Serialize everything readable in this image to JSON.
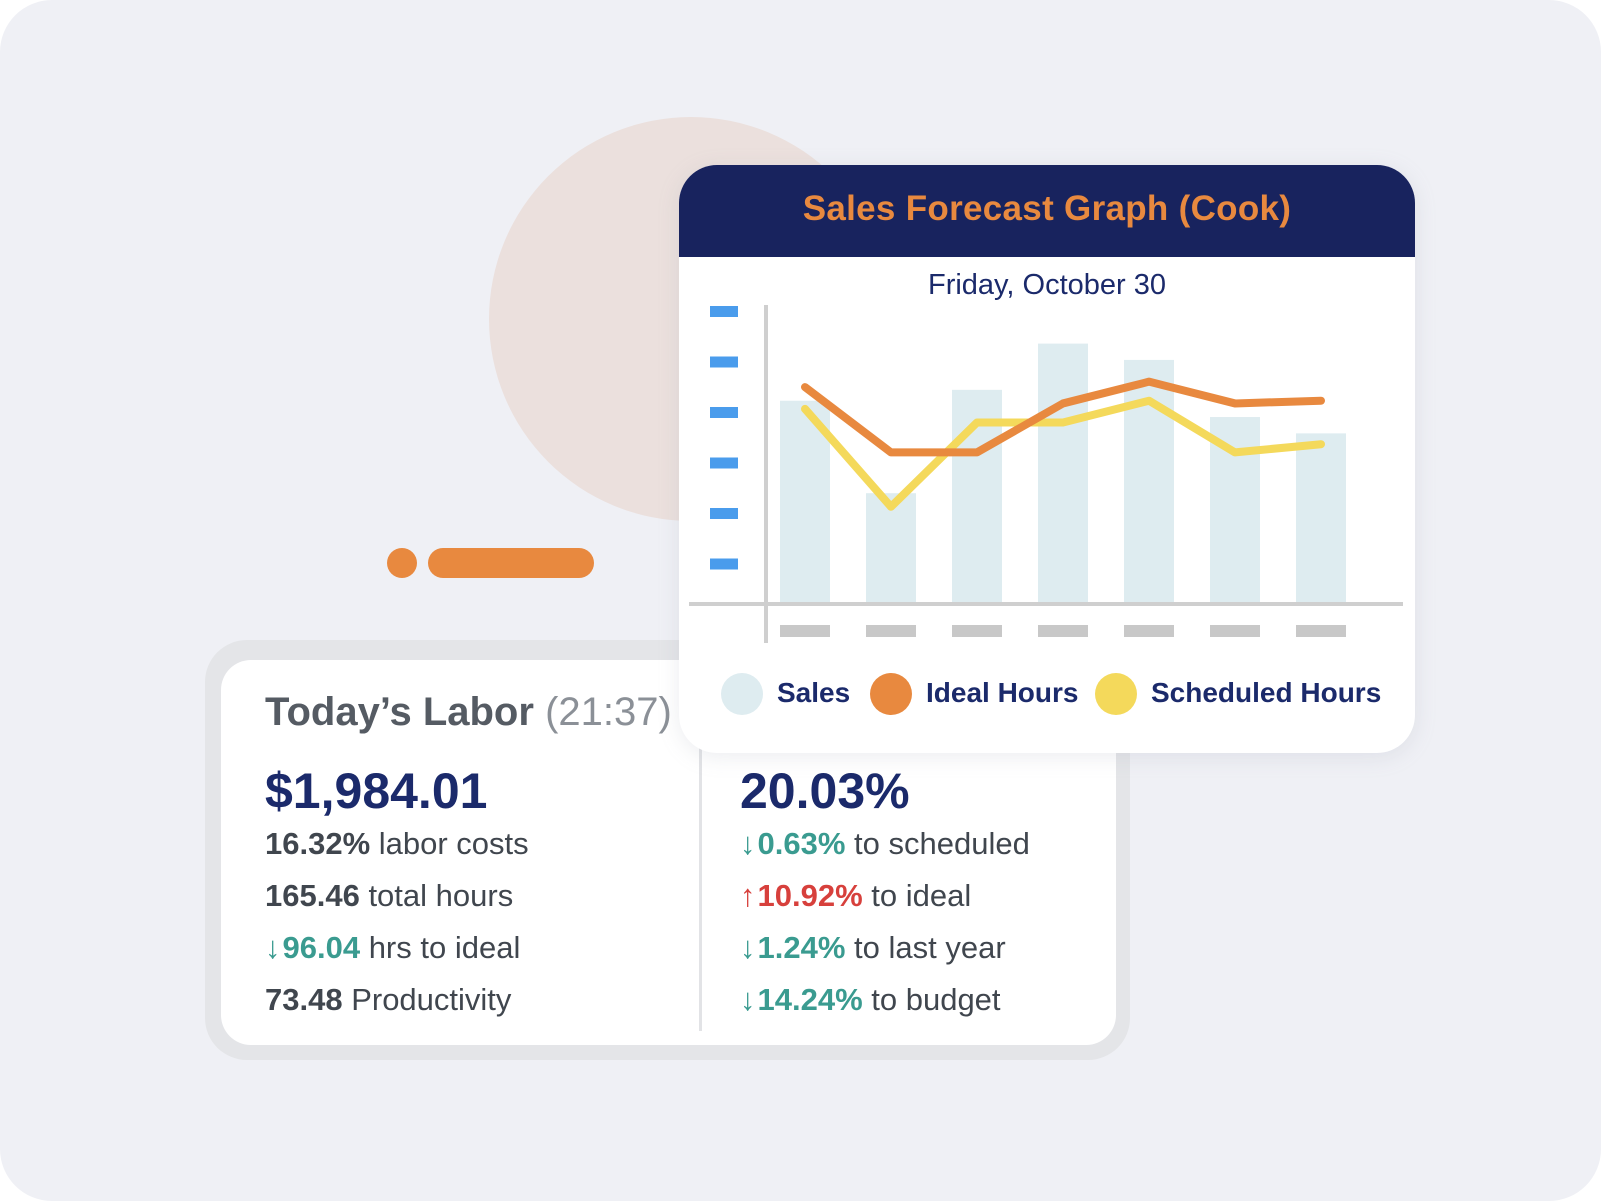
{
  "labor": {
    "title": "Today’s Labor",
    "time": "(21:37)",
    "cost_value": "$1,984.01",
    "percent_value": "20.03%",
    "left_stats": [
      {
        "value": "16.32%",
        "text": "labor costs",
        "trend": "none",
        "arrow": ""
      },
      {
        "value": "165.46",
        "text": "total hours",
        "trend": "none",
        "arrow": ""
      },
      {
        "value": "96.04",
        "text": "hrs to ideal",
        "trend": "down",
        "arrow": "↓"
      },
      {
        "value": "73.48",
        "text": "Productivity",
        "trend": "none",
        "arrow": ""
      }
    ],
    "right_stats": [
      {
        "value": "0.63%",
        "text": "to scheduled",
        "trend": "down",
        "arrow": "↓"
      },
      {
        "value": "10.92%",
        "text": "to ideal",
        "trend": "up",
        "arrow": "↑"
      },
      {
        "value": "1.24%",
        "text": "to last year",
        "trend": "down",
        "arrow": "↓"
      },
      {
        "value": "14.24%",
        "text": "to budget",
        "trend": "down",
        "arrow": "↓"
      }
    ]
  },
  "chart": {
    "title": "Sales Forecast Graph (Cook)",
    "date": "Friday, October 30",
    "legend": [
      {
        "label": "Sales",
        "color": "#deecf0"
      },
      {
        "label": "Ideal Hours",
        "color": "#e8893f"
      },
      {
        "label": "Scheduled Hours",
        "color": "#f4d95b"
      }
    ]
  },
  "colors": {
    "navy": "#18235e",
    "orange": "#e8893f",
    "yellow": "#f4d95b",
    "sales_bar": "#deecf0",
    "green": "#3a9b90",
    "red": "#d7403c",
    "tick_blue": "#4a9cec",
    "tick_gray": "#c8c8c8"
  },
  "chart_data": {
    "type": "bar",
    "title": "Sales Forecast Graph (Cook)",
    "subtitle": "Friday, October 30",
    "xlabel": "",
    "ylabel": "",
    "ylim": [
      0,
      100
    ],
    "categories": [
      "",
      "",
      "",
      "",
      "",
      "",
      ""
    ],
    "grid": false,
    "legend_position": "bottom",
    "series": [
      {
        "name": "Sales",
        "type": "bar",
        "values": [
          74,
          40,
          78,
          95,
          89,
          68,
          62
        ]
      },
      {
        "name": "Ideal Hours",
        "type": "line",
        "values": [
          79,
          55,
          55,
          73,
          81,
          73,
          74
        ]
      },
      {
        "name": "Scheduled Hours",
        "type": "line",
        "values": [
          71,
          35,
          66,
          66,
          74,
          55,
          58
        ]
      }
    ]
  }
}
